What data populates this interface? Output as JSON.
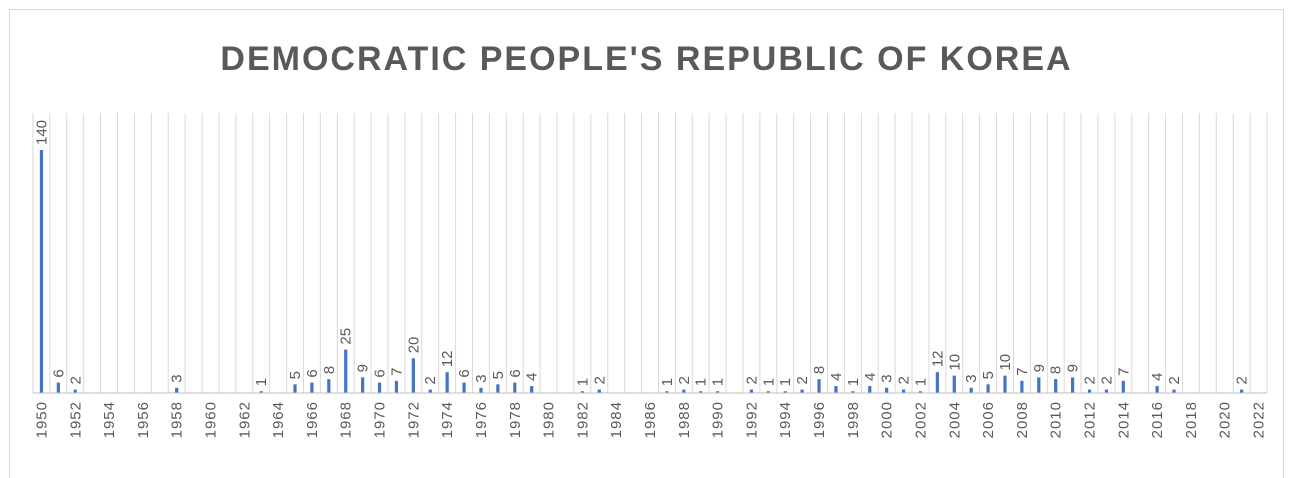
{
  "chart_data": {
    "type": "bar",
    "title": "DEMOCRATIC PEOPLE'S REPUBLIC OF KOREA",
    "xlabel": "",
    "ylabel": "",
    "x_range": [
      1950,
      2022
    ],
    "ylim": [
      0,
      140
    ],
    "grid": "vertical",
    "legend": "none",
    "bar_color": "#4472c4",
    "tick_labels": [
      "1950",
      "1952",
      "1954",
      "1956",
      "1958",
      "1960",
      "1962",
      "1964",
      "1966",
      "1968",
      "1970",
      "1972",
      "1974",
      "1976",
      "1978",
      "1980",
      "1982",
      "1984",
      "1986",
      "1988",
      "1990",
      "1992",
      "1994",
      "1996",
      "1998",
      "2000",
      "2002",
      "2004",
      "2006",
      "2008",
      "2010",
      "2012",
      "2014",
      "2016",
      "2018",
      "2020",
      "2022"
    ],
    "points": [
      {
        "year": 1950,
        "value": 140
      },
      {
        "year": 1951,
        "value": 6
      },
      {
        "year": 1952,
        "value": 2
      },
      {
        "year": 1958,
        "value": 3
      },
      {
        "year": 1963,
        "value": 1
      },
      {
        "year": 1965,
        "value": 5
      },
      {
        "year": 1966,
        "value": 6
      },
      {
        "year": 1967,
        "value": 8
      },
      {
        "year": 1968,
        "value": 25
      },
      {
        "year": 1969,
        "value": 9
      },
      {
        "year": 1970,
        "value": 6
      },
      {
        "year": 1971,
        "value": 7
      },
      {
        "year": 1972,
        "value": 20
      },
      {
        "year": 1973,
        "value": 2
      },
      {
        "year": 1974,
        "value": 12
      },
      {
        "year": 1975,
        "value": 6
      },
      {
        "year": 1976,
        "value": 3
      },
      {
        "year": 1977,
        "value": 5
      },
      {
        "year": 1978,
        "value": 6
      },
      {
        "year": 1979,
        "value": 4
      },
      {
        "year": 1982,
        "value": 1
      },
      {
        "year": 1983,
        "value": 2
      },
      {
        "year": 1987,
        "value": 1
      },
      {
        "year": 1988,
        "value": 2
      },
      {
        "year": 1989,
        "value": 1
      },
      {
        "year": 1990,
        "value": 1
      },
      {
        "year": 1992,
        "value": 2
      },
      {
        "year": 1993,
        "value": 1
      },
      {
        "year": 1994,
        "value": 1
      },
      {
        "year": 1995,
        "value": 2
      },
      {
        "year": 1996,
        "value": 8
      },
      {
        "year": 1997,
        "value": 4
      },
      {
        "year": 1998,
        "value": 1
      },
      {
        "year": 1999,
        "value": 4
      },
      {
        "year": 2000,
        "value": 3
      },
      {
        "year": 2001,
        "value": 2
      },
      {
        "year": 2002,
        "value": 1
      },
      {
        "year": 2003,
        "value": 12
      },
      {
        "year": 2004,
        "value": 10
      },
      {
        "year": 2005,
        "value": 3
      },
      {
        "year": 2006,
        "value": 5
      },
      {
        "year": 2007,
        "value": 10
      },
      {
        "year": 2008,
        "value": 7
      },
      {
        "year": 2009,
        "value": 9
      },
      {
        "year": 2010,
        "value": 8
      },
      {
        "year": 2011,
        "value": 9
      },
      {
        "year": 2012,
        "value": 2
      },
      {
        "year": 2013,
        "value": 2
      },
      {
        "year": 2014,
        "value": 7
      },
      {
        "year": 2016,
        "value": 4
      },
      {
        "year": 2017,
        "value": 2
      },
      {
        "year": 2021,
        "value": 2
      }
    ]
  }
}
